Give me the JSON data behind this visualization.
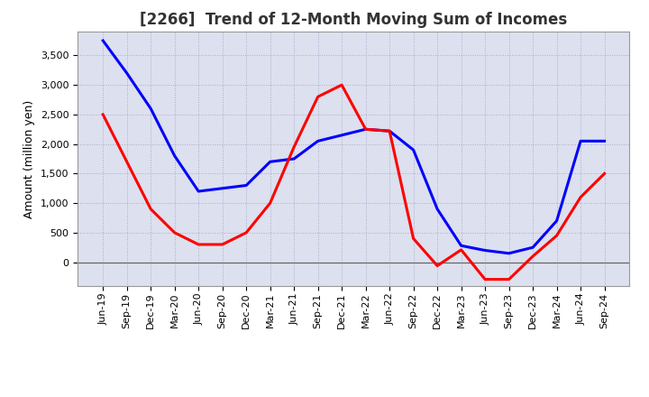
{
  "title": "[2266]  Trend of 12-Month Moving Sum of Incomes",
  "ylabel": "Amount (million yen)",
  "background_color": "#ffffff",
  "grid_color": "#aaaacc",
  "plot_bg_color": "#dde0ee",
  "x_labels": [
    "Jun-19",
    "Sep-19",
    "Dec-19",
    "Mar-20",
    "Jun-20",
    "Sep-20",
    "Dec-20",
    "Mar-21",
    "Jun-21",
    "Sep-21",
    "Dec-21",
    "Mar-22",
    "Jun-22",
    "Sep-22",
    "Dec-22",
    "Mar-23",
    "Jun-23",
    "Sep-23",
    "Dec-23",
    "Mar-24",
    "Jun-24",
    "Sep-24"
  ],
  "ordinary_income": [
    3750,
    3200,
    2600,
    1800,
    1200,
    1250,
    1300,
    1700,
    1750,
    2050,
    2150,
    2250,
    2220,
    1900,
    900,
    280,
    200,
    150,
    250,
    700,
    2050,
    2050
  ],
  "net_income": [
    2500,
    1700,
    900,
    500,
    300,
    300,
    500,
    1000,
    1950,
    2800,
    3000,
    2250,
    2220,
    400,
    -60,
    210,
    -290,
    -290,
    100,
    450,
    1100,
    1500
  ],
  "ylim": [
    -400,
    3900
  ],
  "yticks": [
    0,
    500,
    1000,
    1500,
    2000,
    2500,
    3000,
    3500
  ],
  "ordinary_color": "#0000ff",
  "net_color": "#ff0000",
  "line_width": 2.2,
  "title_fontsize": 12,
  "tick_fontsize": 8,
  "ylabel_fontsize": 9
}
